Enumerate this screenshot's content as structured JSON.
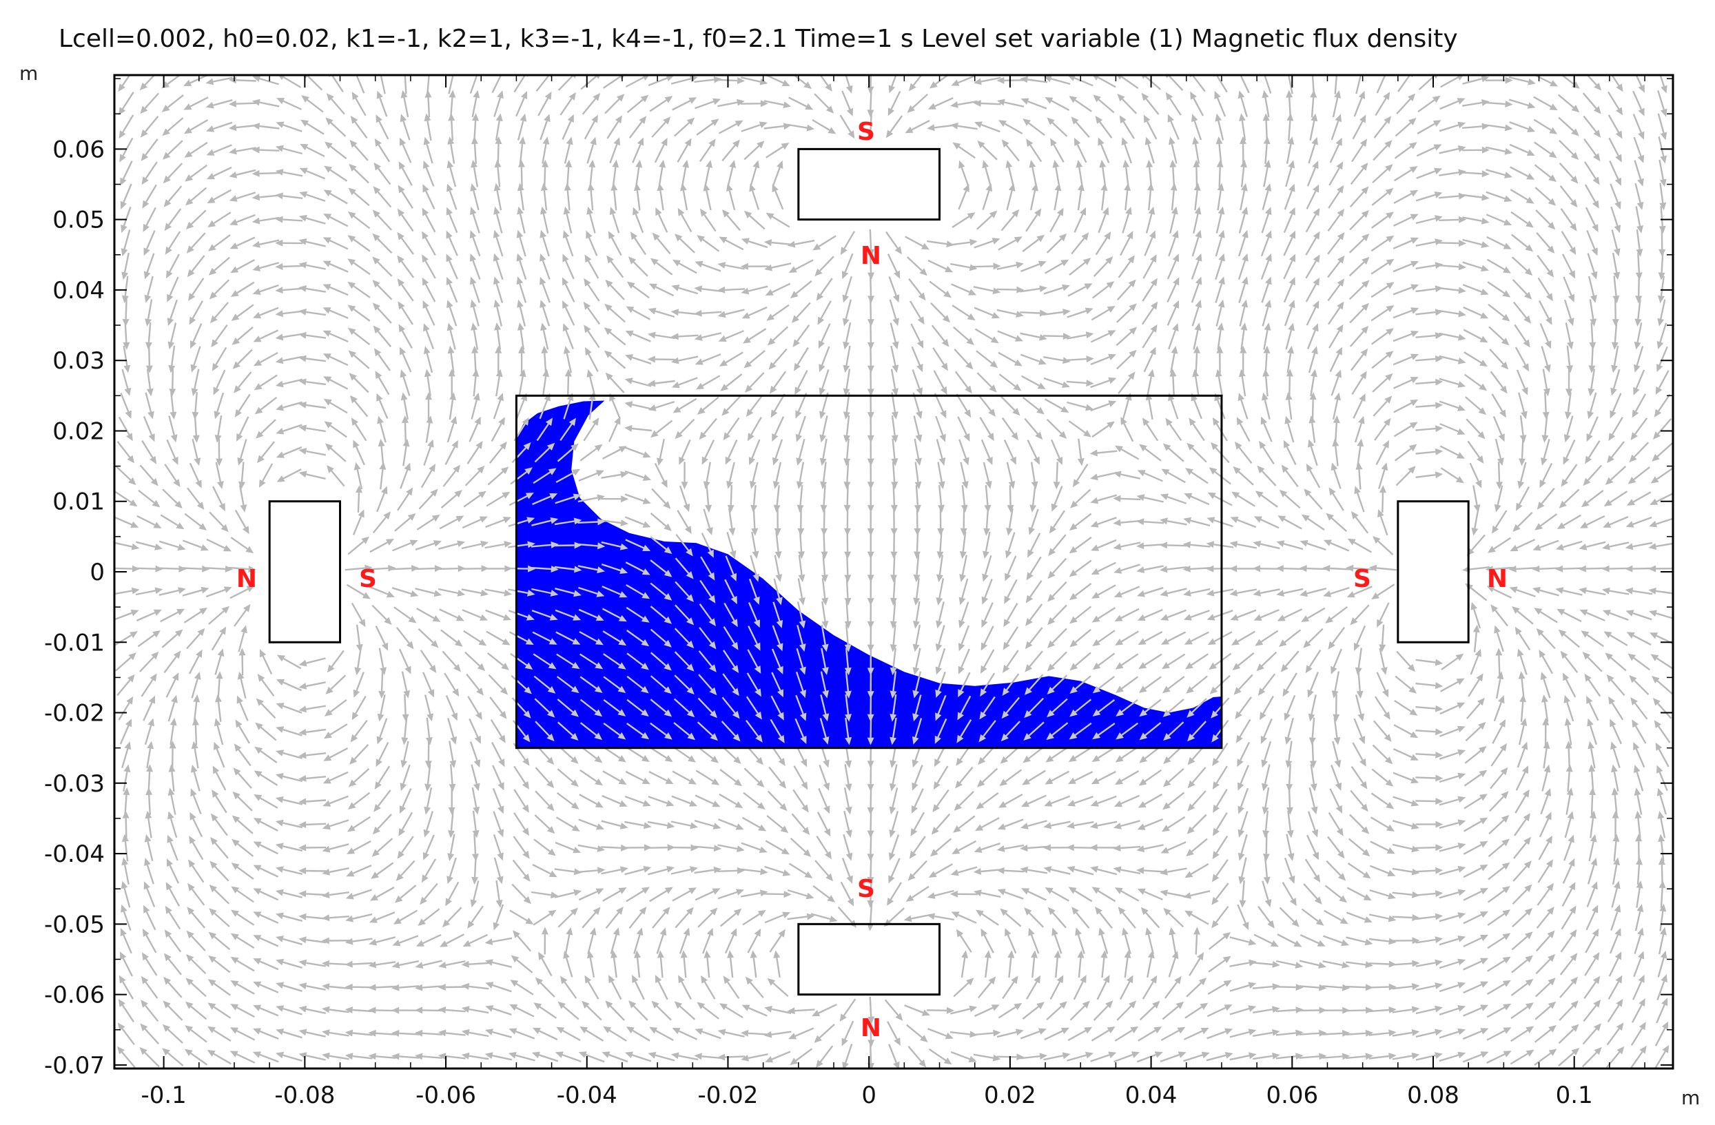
{
  "title": "Lcell=0.002, h0=0.02, k1=-1, k2=1, k3=-1, k4=-1, f0=2.1 Time=1 s  Level set variable (1)  Magnetic flux density",
  "x_unit": "m",
  "y_unit": "m",
  "colors": {
    "fluid": "#0000ff",
    "arrows": "#b8b8b8",
    "pole_labels": "#ff1a1a",
    "outline": "#000000"
  },
  "chart_data": {
    "type": "vector-field",
    "title": "Lcell=0.002, h0=0.02, k1=-1, k2=1, k3=-1, k4=-1, f0=2.1 Time=1 s  Level set variable (1)  Magnetic flux density",
    "xlabel": "m",
    "ylabel": "m",
    "xlim": [
      -0.107,
      0.114
    ],
    "ylim": [
      -0.0705,
      0.0705
    ],
    "x_ticks": [
      -0.1,
      -0.08,
      -0.06,
      -0.04,
      -0.02,
      0,
      0.02,
      0.04,
      0.06,
      0.08,
      0.1
    ],
    "x_tick_labels": [
      "-0.1",
      "-0.08",
      "-0.06",
      "-0.04",
      "-0.02",
      "0",
      "0.02",
      "0.04",
      "0.06",
      "0.08",
      "0.1"
    ],
    "y_ticks": [
      0.06,
      0.05,
      0.04,
      0.03,
      0.02,
      0.01,
      0,
      -0.01,
      -0.02,
      -0.03,
      -0.04,
      -0.05,
      -0.06,
      -0.07
    ],
    "y_tick_labels": [
      "0.06",
      "0.05",
      "0.04",
      "0.03",
      "0.02",
      "0.01",
      "0",
      "-0.01",
      "-0.02",
      "-0.03",
      "-0.04",
      "-0.05",
      "-0.06",
      "-0.07"
    ],
    "magnets": [
      {
        "name": "top",
        "x": [
          -0.01,
          0.01
        ],
        "y": [
          0.05,
          0.06
        ],
        "moment": [
          0,
          -1
        ],
        "labels": [
          {
            "text": "S",
            "x": 0,
            "y": 0.063
          },
          {
            "text": "N",
            "x": 0,
            "y": 0.0455
          }
        ]
      },
      {
        "name": "bottom",
        "x": [
          -0.01,
          0.01
        ],
        "y": [
          -0.06,
          -0.05
        ],
        "moment": [
          0,
          -1
        ],
        "labels": [
          {
            "text": "S",
            "x": 0,
            "y": -0.044
          },
          {
            "text": "N",
            "x": 0,
            "y": -0.0645
          }
        ]
      },
      {
        "name": "left",
        "x": [
          -0.085,
          -0.075
        ],
        "y": [
          -0.01,
          0.01
        ],
        "moment": [
          1,
          0
        ],
        "labels": [
          {
            "text": "N",
            "x": -0.0885,
            "y": 0
          },
          {
            "text": "S",
            "x": -0.0715,
            "y": 0
          }
        ]
      },
      {
        "name": "right",
        "x": [
          0.075,
          0.085
        ],
        "y": [
          -0.01,
          0.01
        ],
        "moment": [
          -1,
          0
        ],
        "labels": [
          {
            "text": "S",
            "x": 0.0703,
            "y": 0
          },
          {
            "text": "N",
            "x": 0.0893,
            "y": 0
          }
        ]
      }
    ],
    "container": {
      "x": [
        -0.05,
        0.05
      ],
      "y": [
        -0.025,
        0.025
      ]
    },
    "fluid_surface": [
      [
        -0.05,
        -0.025
      ],
      [
        -0.05,
        0.019
      ],
      [
        -0.049,
        0.021
      ],
      [
        -0.047,
        0.0225
      ],
      [
        -0.044,
        0.0235
      ],
      [
        -0.0405,
        0.0242
      ],
      [
        -0.0375,
        0.0243
      ],
      [
        -0.0398,
        0.0222
      ],
      [
        -0.0418,
        0.0185
      ],
      [
        -0.0422,
        0.0145
      ],
      [
        -0.041,
        0.0105
      ],
      [
        -0.038,
        0.0075
      ],
      [
        -0.034,
        0.0055
      ],
      [
        -0.029,
        0.0043
      ],
      [
        -0.0245,
        0.0041
      ],
      [
        -0.02,
        0.0025
      ],
      [
        -0.015,
        -0.001
      ],
      [
        -0.01,
        -0.0055
      ],
      [
        -0.005,
        -0.009
      ],
      [
        0,
        -0.0118
      ],
      [
        0.005,
        -0.0142
      ],
      [
        0.01,
        -0.0158
      ],
      [
        0.015,
        -0.0162
      ],
      [
        0.0205,
        -0.0157
      ],
      [
        0.0255,
        -0.0148
      ],
      [
        0.03,
        -0.0155
      ],
      [
        0.035,
        -0.0175
      ],
      [
        0.039,
        -0.0193
      ],
      [
        0.0425,
        -0.02
      ],
      [
        0.046,
        -0.0193
      ],
      [
        0.0488,
        -0.0178
      ],
      [
        0.05,
        -0.0177
      ],
      [
        0.05,
        -0.025
      ]
    ]
  },
  "pole_labels": {
    "top_s": "S",
    "top_n": "N",
    "bottom_s": "S",
    "bottom_n": "N",
    "left_n": "N",
    "left_s": "S",
    "right_s": "S",
    "right_n": "N"
  }
}
